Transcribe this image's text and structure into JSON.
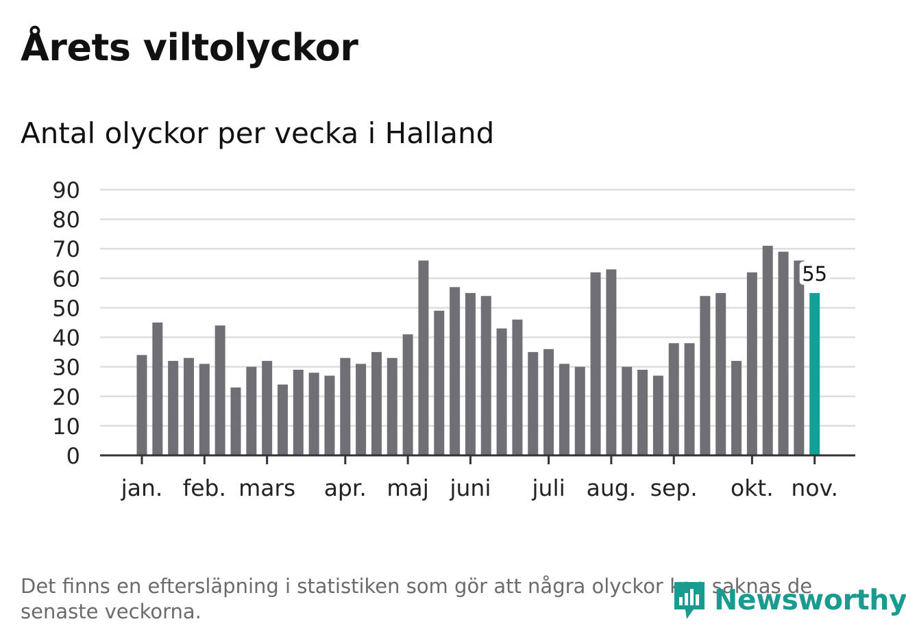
{
  "header": {
    "title": "Årets viltolyckor",
    "subtitle": "Antal olyckor per vecka i Halland"
  },
  "footnote": "Det finns en eftersläpning i statistiken som gör att några olyckor kan saknas de senaste veckorna.",
  "logo": {
    "text": "Newsworthy",
    "icon": "newsworthy-logo-icon"
  },
  "colors": {
    "bar": "#706f76",
    "highlight": "#13a099",
    "grid": "#dddddd",
    "axis": "#333333",
    "logo": "#1a9b8f"
  },
  "chart_data": {
    "type": "bar",
    "title": "Antal olyckor per vecka i Halland",
    "xlabel": "",
    "ylabel": "",
    "ylim": [
      0,
      90
    ],
    "yticks": [
      0,
      10,
      20,
      30,
      40,
      50,
      60,
      70,
      80,
      90
    ],
    "grid": true,
    "values": [
      34,
      45,
      32,
      33,
      31,
      44,
      23,
      30,
      32,
      24,
      29,
      28,
      27,
      33,
      31,
      35,
      33,
      41,
      66,
      49,
      57,
      55,
      54,
      43,
      46,
      35,
      36,
      31,
      30,
      62,
      63,
      30,
      29,
      27,
      38,
      38,
      54,
      55,
      32,
      62,
      71,
      69,
      66,
      55
    ],
    "month_labels": [
      {
        "label": "jan.",
        "week_index": 0
      },
      {
        "label": "feb.",
        "week_index": 4
      },
      {
        "label": "mars",
        "week_index": 8
      },
      {
        "label": "apr.",
        "week_index": 13
      },
      {
        "label": "maj",
        "week_index": 17
      },
      {
        "label": "juni",
        "week_index": 21
      },
      {
        "label": "juli",
        "week_index": 26
      },
      {
        "label": "aug.",
        "week_index": 30
      },
      {
        "label": "sep.",
        "week_index": 34
      },
      {
        "label": "okt.",
        "week_index": 39
      },
      {
        "label": "nov.",
        "week_index": 43
      }
    ],
    "highlight_index": 43,
    "annotation": {
      "week_index": 43,
      "text": "55"
    }
  }
}
